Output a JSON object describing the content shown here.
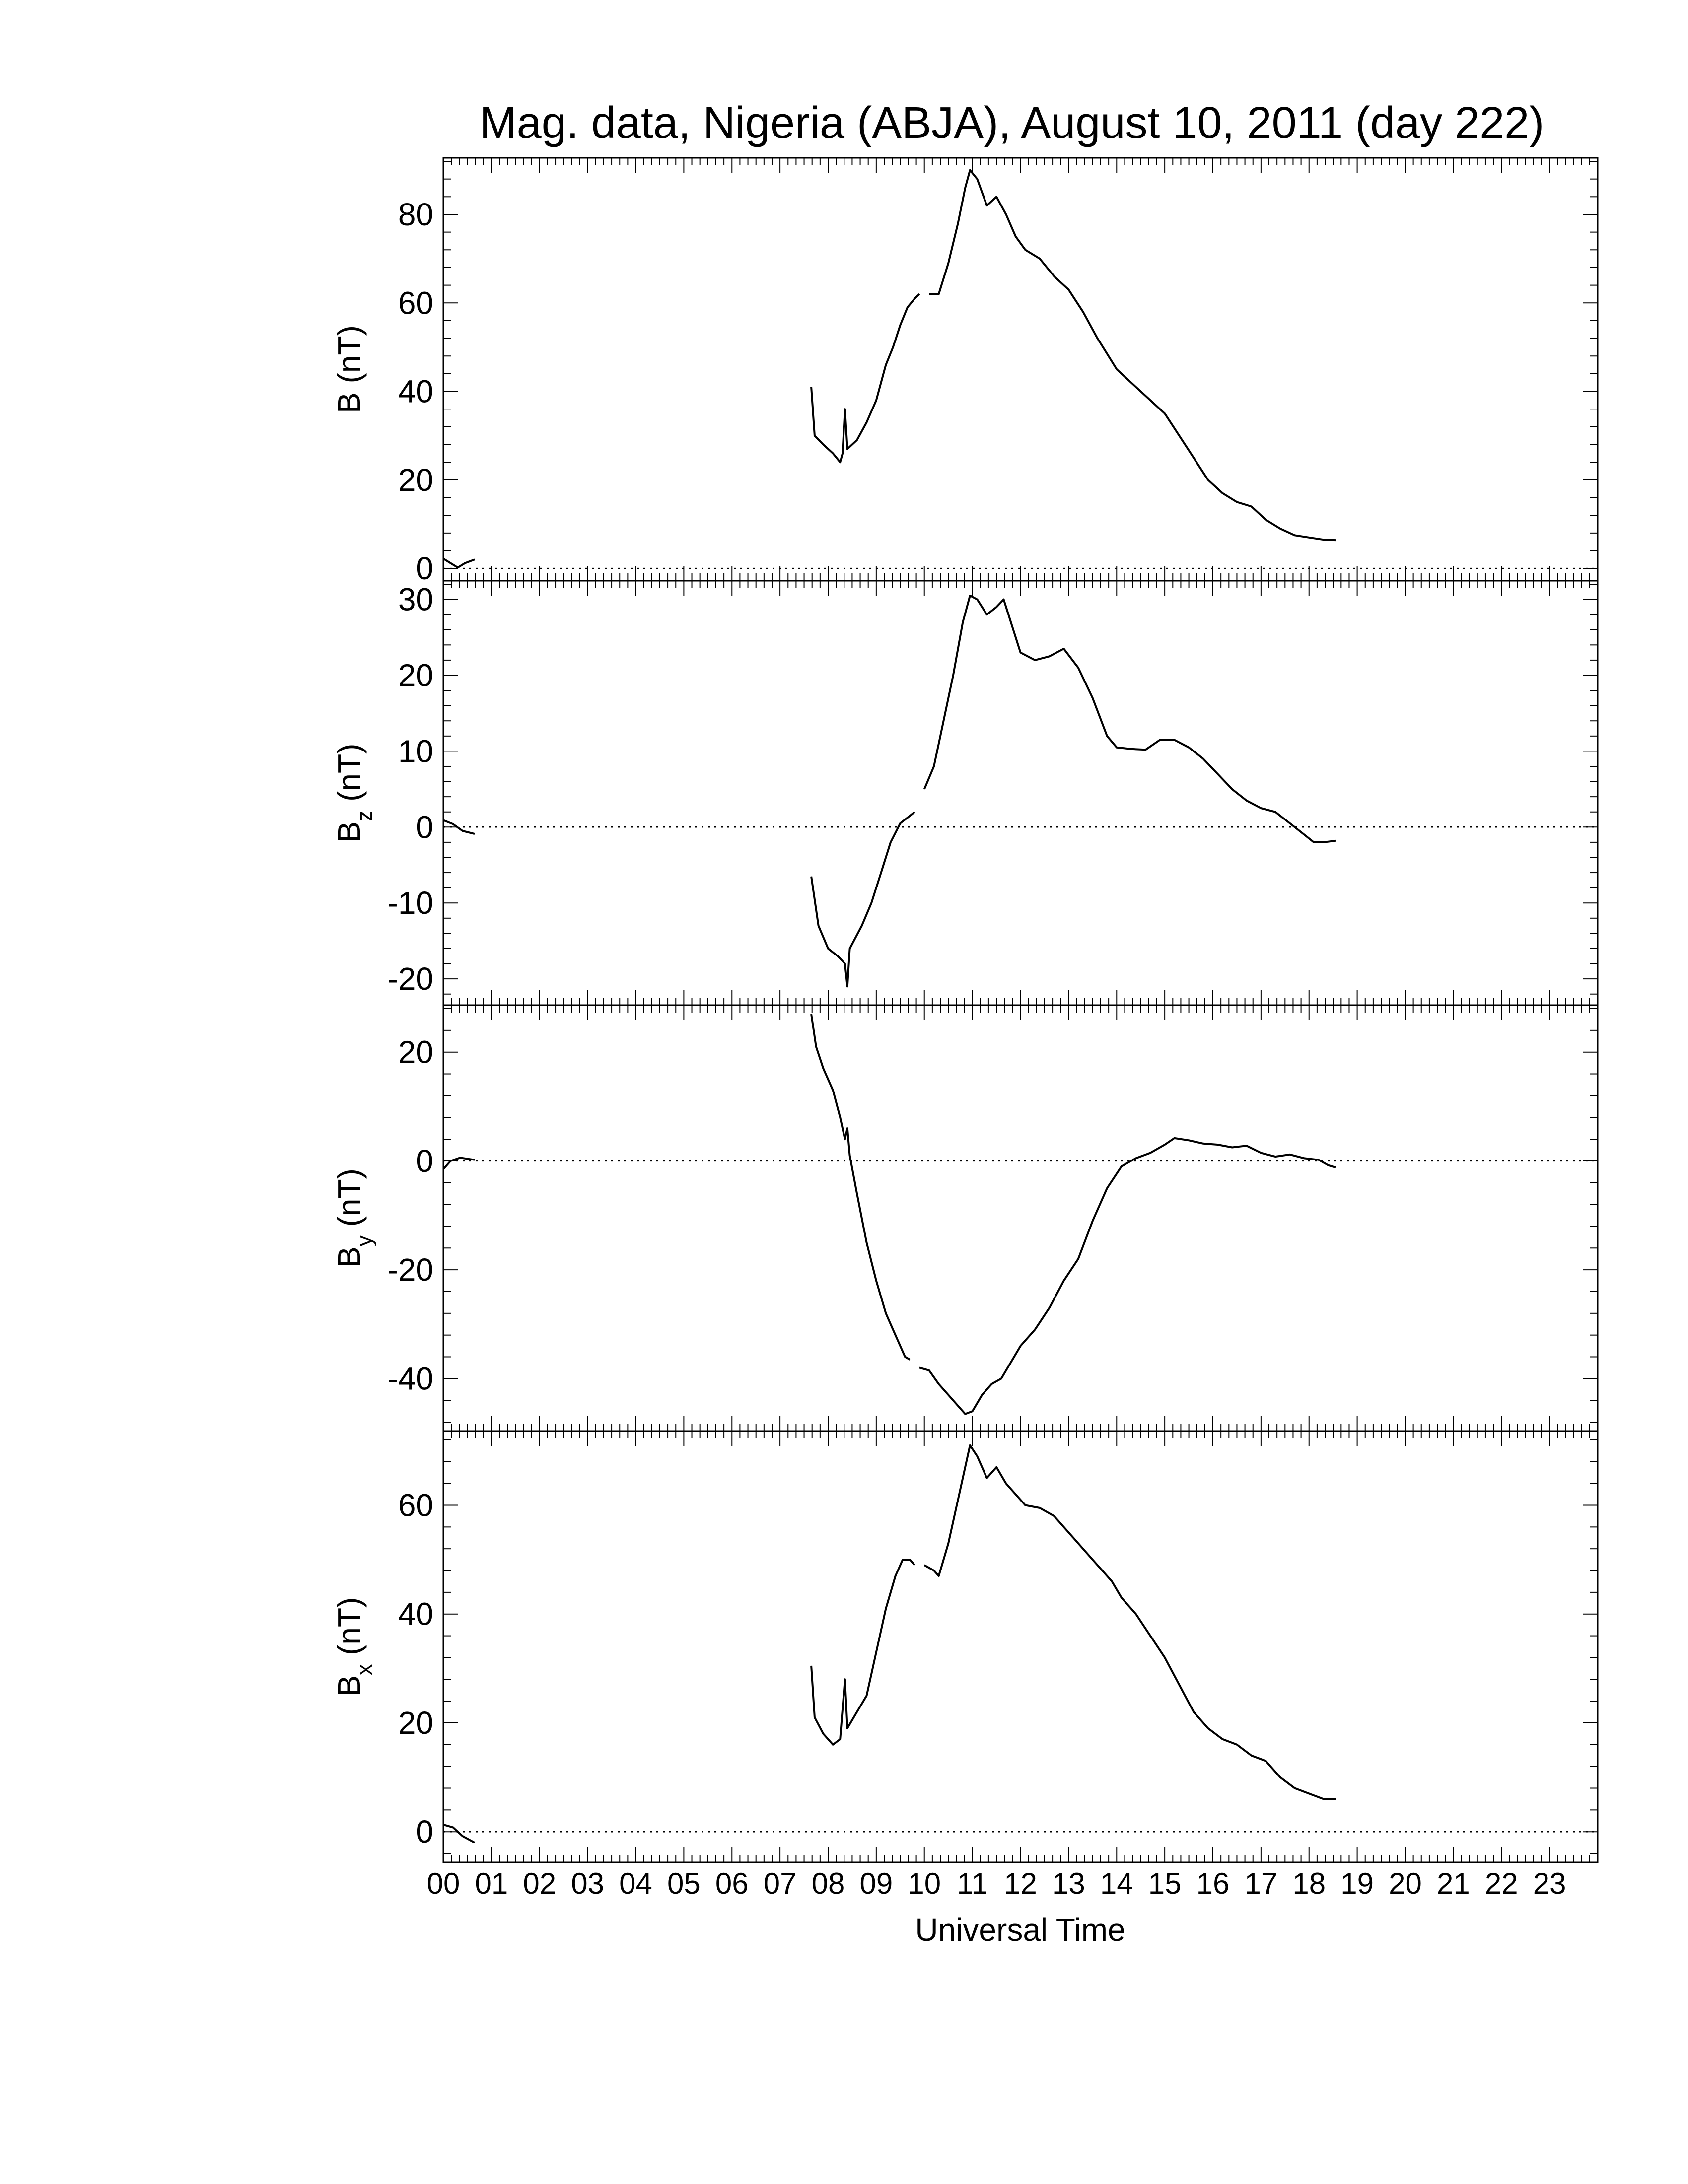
{
  "chart_data": {
    "type": "line",
    "title": "Mag. data, Nigeria (ABJA), August 10, 2011 (day 222)",
    "xlabel": "Universal Time",
    "xlim": [
      0,
      24
    ],
    "xticks": [
      "00",
      "01",
      "02",
      "03",
      "04",
      "05",
      "06",
      "07",
      "08",
      "09",
      "10",
      "11",
      "12",
      "13",
      "14",
      "15",
      "16",
      "17",
      "18",
      "19",
      "20",
      "21",
      "22",
      "23"
    ],
    "grid": false,
    "zero_reference_line": "dotted",
    "line_color": "#000000",
    "panels": [
      {
        "ylabel": "B (nT)",
        "ylabel_main": "B",
        "ylabel_sub": "",
        "ylabel_unit": " (nT)",
        "ylim": [
          -2,
          92
        ],
        "yticks": [
          0,
          20,
          40,
          60,
          80
        ],
        "segments": [
          [
            [
              0.0,
              2.2
            ],
            [
              0.15,
              1.2
            ],
            [
              0.3,
              0.2
            ],
            [
              0.45,
              1.2
            ],
            [
              0.65,
              2.0
            ]
          ],
          [
            [
              7.65,
              41
            ],
            [
              7.72,
              30
            ],
            [
              7.9,
              28
            ],
            [
              8.1,
              26
            ],
            [
              8.25,
              24
            ],
            [
              8.3,
              26
            ],
            [
              8.35,
              36
            ],
            [
              8.4,
              27
            ],
            [
              8.6,
              29
            ],
            [
              8.8,
              33
            ],
            [
              9.0,
              38
            ],
            [
              9.2,
              46
            ],
            [
              9.35,
              50
            ],
            [
              9.5,
              55
            ],
            [
              9.65,
              59
            ],
            [
              9.8,
              61
            ],
            [
              9.9,
              62
            ]
          ],
          [
            [
              10.1,
              62
            ],
            [
              10.3,
              62
            ],
            [
              10.5,
              69
            ],
            [
              10.7,
              78
            ],
            [
              10.85,
              86
            ],
            [
              10.95,
              90
            ],
            [
              11.1,
              88
            ],
            [
              11.3,
              82
            ],
            [
              11.5,
              84
            ],
            [
              11.7,
              80
            ],
            [
              11.9,
              75
            ],
            [
              12.1,
              72
            ],
            [
              12.4,
              70
            ],
            [
              12.7,
              66
            ],
            [
              13.0,
              63
            ],
            [
              13.3,
              58
            ],
            [
              13.6,
              52
            ],
            [
              14.0,
              45
            ],
            [
              14.3,
              42
            ],
            [
              14.7,
              38
            ],
            [
              15.0,
              35
            ],
            [
              15.3,
              30
            ],
            [
              15.6,
              25
            ],
            [
              15.9,
              20
            ],
            [
              16.2,
              17
            ],
            [
              16.5,
              15
            ],
            [
              16.8,
              14
            ],
            [
              17.1,
              11
            ],
            [
              17.4,
              9
            ],
            [
              17.7,
              7.5
            ],
            [
              18.0,
              7
            ],
            [
              18.3,
              6.5
            ],
            [
              18.55,
              6.4
            ]
          ]
        ]
      },
      {
        "ylabel": "Bz (nT)",
        "ylabel_main": "B",
        "ylabel_sub": "z",
        "ylabel_unit": " (nT)",
        "ylim": [
          -23,
          32
        ],
        "yticks": [
          -20,
          -10,
          0,
          10,
          20,
          30
        ],
        "segments": [
          [
            [
              0.0,
              0.9
            ],
            [
              0.2,
              0.4
            ],
            [
              0.4,
              -0.5
            ],
            [
              0.65,
              -0.9
            ]
          ],
          [
            [
              7.65,
              -6.5
            ],
            [
              7.8,
              -13
            ],
            [
              8.0,
              -16
            ],
            [
              8.2,
              -17
            ],
            [
              8.35,
              -18
            ],
            [
              8.4,
              -21
            ],
            [
              8.45,
              -16
            ],
            [
              8.7,
              -13
            ],
            [
              8.9,
              -10
            ],
            [
              9.1,
              -6
            ],
            [
              9.3,
              -2
            ],
            [
              9.5,
              0.5
            ],
            [
              9.7,
              1.5
            ],
            [
              9.8,
              2.0
            ]
          ],
          [
            [
              10.0,
              5
            ],
            [
              10.2,
              8
            ],
            [
              10.4,
              14
            ],
            [
              10.6,
              20
            ],
            [
              10.8,
              27
            ],
            [
              10.95,
              30.5
            ],
            [
              11.1,
              30
            ],
            [
              11.3,
              28
            ],
            [
              11.5,
              29
            ],
            [
              11.65,
              30
            ],
            [
              11.8,
              27
            ],
            [
              12.0,
              23
            ],
            [
              12.3,
              22
            ],
            [
              12.6,
              22.5
            ],
            [
              12.9,
              23.5
            ],
            [
              13.2,
              21
            ],
            [
              13.5,
              17
            ],
            [
              13.8,
              12
            ],
            [
              14.0,
              10.5
            ],
            [
              14.3,
              10.3
            ],
            [
              14.6,
              10.2
            ],
            [
              14.9,
              11.5
            ],
            [
              15.2,
              11.5
            ],
            [
              15.5,
              10.5
            ],
            [
              15.8,
              9
            ],
            [
              16.1,
              7
            ],
            [
              16.4,
              5
            ],
            [
              16.7,
              3.5
            ],
            [
              17.0,
              2.5
            ],
            [
              17.3,
              2
            ],
            [
              17.6,
              0.5
            ],
            [
              17.9,
              -1
            ],
            [
              18.1,
              -2
            ],
            [
              18.3,
              -2
            ],
            [
              18.55,
              -1.8
            ]
          ]
        ]
      },
      {
        "ylabel": "By (nT)",
        "ylabel_main": "B",
        "ylabel_sub": "y",
        "ylabel_unit": " (nT)",
        "ylim": [
          -49,
          28
        ],
        "yticks": [
          -40,
          -20,
          0,
          20
        ],
        "segments": [
          [
            [
              0.0,
              -1.5
            ],
            [
              0.15,
              0.0
            ],
            [
              0.35,
              0.6
            ],
            [
              0.65,
              0.2
            ]
          ],
          [
            [
              7.65,
              27
            ],
            [
              7.75,
              21
            ],
            [
              7.9,
              17
            ],
            [
              8.1,
              13
            ],
            [
              8.25,
              8
            ],
            [
              8.35,
              4
            ],
            [
              8.4,
              6
            ],
            [
              8.45,
              1
            ],
            [
              8.6,
              -6
            ],
            [
              8.8,
              -15
            ],
            [
              9.0,
              -22
            ],
            [
              9.2,
              -28
            ],
            [
              9.4,
              -32
            ],
            [
              9.6,
              -36
            ],
            [
              9.7,
              -36.5
            ]
          ],
          [
            [
              9.9,
              -38
            ],
            [
              10.1,
              -38.5
            ],
            [
              10.3,
              -41
            ],
            [
              10.5,
              -43
            ],
            [
              10.7,
              -45
            ],
            [
              10.85,
              -46.5
            ],
            [
              11.0,
              -46
            ],
            [
              11.2,
              -43
            ],
            [
              11.4,
              -41
            ],
            [
              11.6,
              -40
            ],
            [
              11.8,
              -37
            ],
            [
              12.0,
              -34
            ],
            [
              12.3,
              -31
            ],
            [
              12.6,
              -27
            ],
            [
              12.9,
              -22
            ],
            [
              13.2,
              -18
            ],
            [
              13.5,
              -11
            ],
            [
              13.8,
              -5
            ],
            [
              14.1,
              -1
            ],
            [
              14.4,
              0.5
            ],
            [
              14.7,
              1.5
            ],
            [
              15.0,
              3
            ],
            [
              15.2,
              4.2
            ],
            [
              15.5,
              3.8
            ],
            [
              15.8,
              3.2
            ],
            [
              16.1,
              3
            ],
            [
              16.4,
              2.5
            ],
            [
              16.7,
              2.8
            ],
            [
              17.0,
              1.5
            ],
            [
              17.3,
              0.8
            ],
            [
              17.6,
              1.2
            ],
            [
              17.9,
              0.5
            ],
            [
              18.2,
              0.2
            ],
            [
              18.4,
              -0.8
            ],
            [
              18.55,
              -1.2
            ]
          ]
        ]
      },
      {
        "ylabel": "Bx (nT)",
        "ylabel_main": "B",
        "ylabel_sub": "x",
        "ylabel_unit": " (nT)",
        "ylim": [
          -5,
          73
        ],
        "yticks": [
          0,
          20,
          40,
          60
        ],
        "segments": [
          [
            [
              0.0,
              1.3
            ],
            [
              0.2,
              0.8
            ],
            [
              0.4,
              -0.8
            ],
            [
              0.65,
              -2.0
            ]
          ],
          [
            [
              7.65,
              30.5
            ],
            [
              7.72,
              21
            ],
            [
              7.9,
              18
            ],
            [
              8.1,
              16
            ],
            [
              8.25,
              17
            ],
            [
              8.35,
              28
            ],
            [
              8.4,
              19
            ],
            [
              8.6,
              22
            ],
            [
              8.8,
              25
            ],
            [
              9.0,
              33
            ],
            [
              9.2,
              41
            ],
            [
              9.4,
              47
            ],
            [
              9.55,
              50
            ],
            [
              9.7,
              50
            ],
            [
              9.8,
              49
            ]
          ],
          [
            [
              10.0,
              49
            ],
            [
              10.2,
              48
            ],
            [
              10.3,
              47
            ],
            [
              10.5,
              53
            ],
            [
              10.7,
              61
            ],
            [
              10.85,
              67
            ],
            [
              10.95,
              71
            ],
            [
              11.1,
              69
            ],
            [
              11.3,
              65
            ],
            [
              11.5,
              67
            ],
            [
              11.7,
              64
            ],
            [
              11.9,
              62
            ],
            [
              12.1,
              60
            ],
            [
              12.4,
              59.5
            ],
            [
              12.7,
              58
            ],
            [
              13.0,
              55
            ],
            [
              13.3,
              52
            ],
            [
              13.6,
              49
            ],
            [
              13.9,
              46
            ],
            [
              14.1,
              43
            ],
            [
              14.4,
              40
            ],
            [
              14.7,
              36
            ],
            [
              15.0,
              32
            ],
            [
              15.3,
              27
            ],
            [
              15.6,
              22
            ],
            [
              15.9,
              19
            ],
            [
              16.2,
              17
            ],
            [
              16.5,
              16
            ],
            [
              16.8,
              14
            ],
            [
              17.1,
              13
            ],
            [
              17.4,
              10
            ],
            [
              17.7,
              8
            ],
            [
              18.0,
              7
            ],
            [
              18.3,
              6
            ],
            [
              18.55,
              6
            ]
          ]
        ]
      }
    ]
  }
}
